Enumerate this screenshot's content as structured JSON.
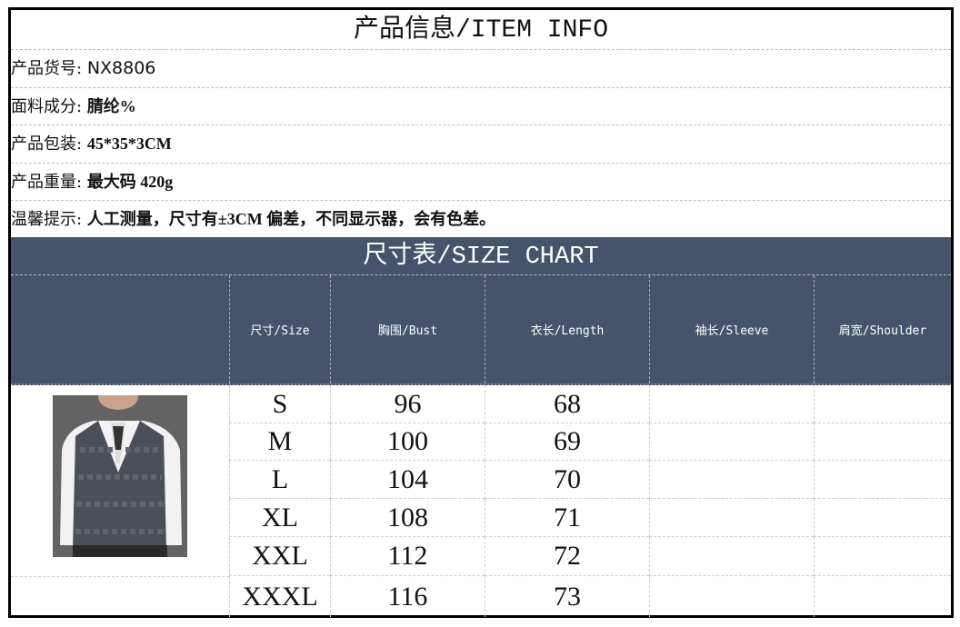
{
  "item_info": {
    "title": "产品信息/ITEM INFO",
    "rows": [
      {
        "label": "产品货号:",
        "value": "NX8806"
      },
      {
        "label": "面料成分:",
        "value": "腈纶%"
      },
      {
        "label": "产品包装:",
        "value": "45*35*3CM"
      },
      {
        "label": "产品重量:",
        "value": "最大码 420g"
      },
      {
        "label": "温馨提示:",
        "value": "人工测量，尺寸有±3CM 偏差，不同显示器，会有色差。"
      }
    ]
  },
  "size_chart": {
    "title": "尺寸表/SIZE CHART",
    "header_color": "#45546b",
    "columns": [
      "尺寸/Size",
      "胸围/Bust",
      "衣长/Length",
      "袖长/Sleeve",
      "肩宽/Shoulder"
    ],
    "rows": [
      [
        "S",
        "96",
        "68",
        "",
        ""
      ],
      [
        "M",
        "100",
        "69",
        "",
        ""
      ],
      [
        "L",
        "104",
        "70",
        "",
        ""
      ],
      [
        "XL",
        "108",
        "71",
        "",
        ""
      ],
      [
        "XXL",
        "112",
        "72",
        "",
        ""
      ],
      [
        "XXXL",
        "116",
        "73",
        "",
        ""
      ]
    ]
  }
}
